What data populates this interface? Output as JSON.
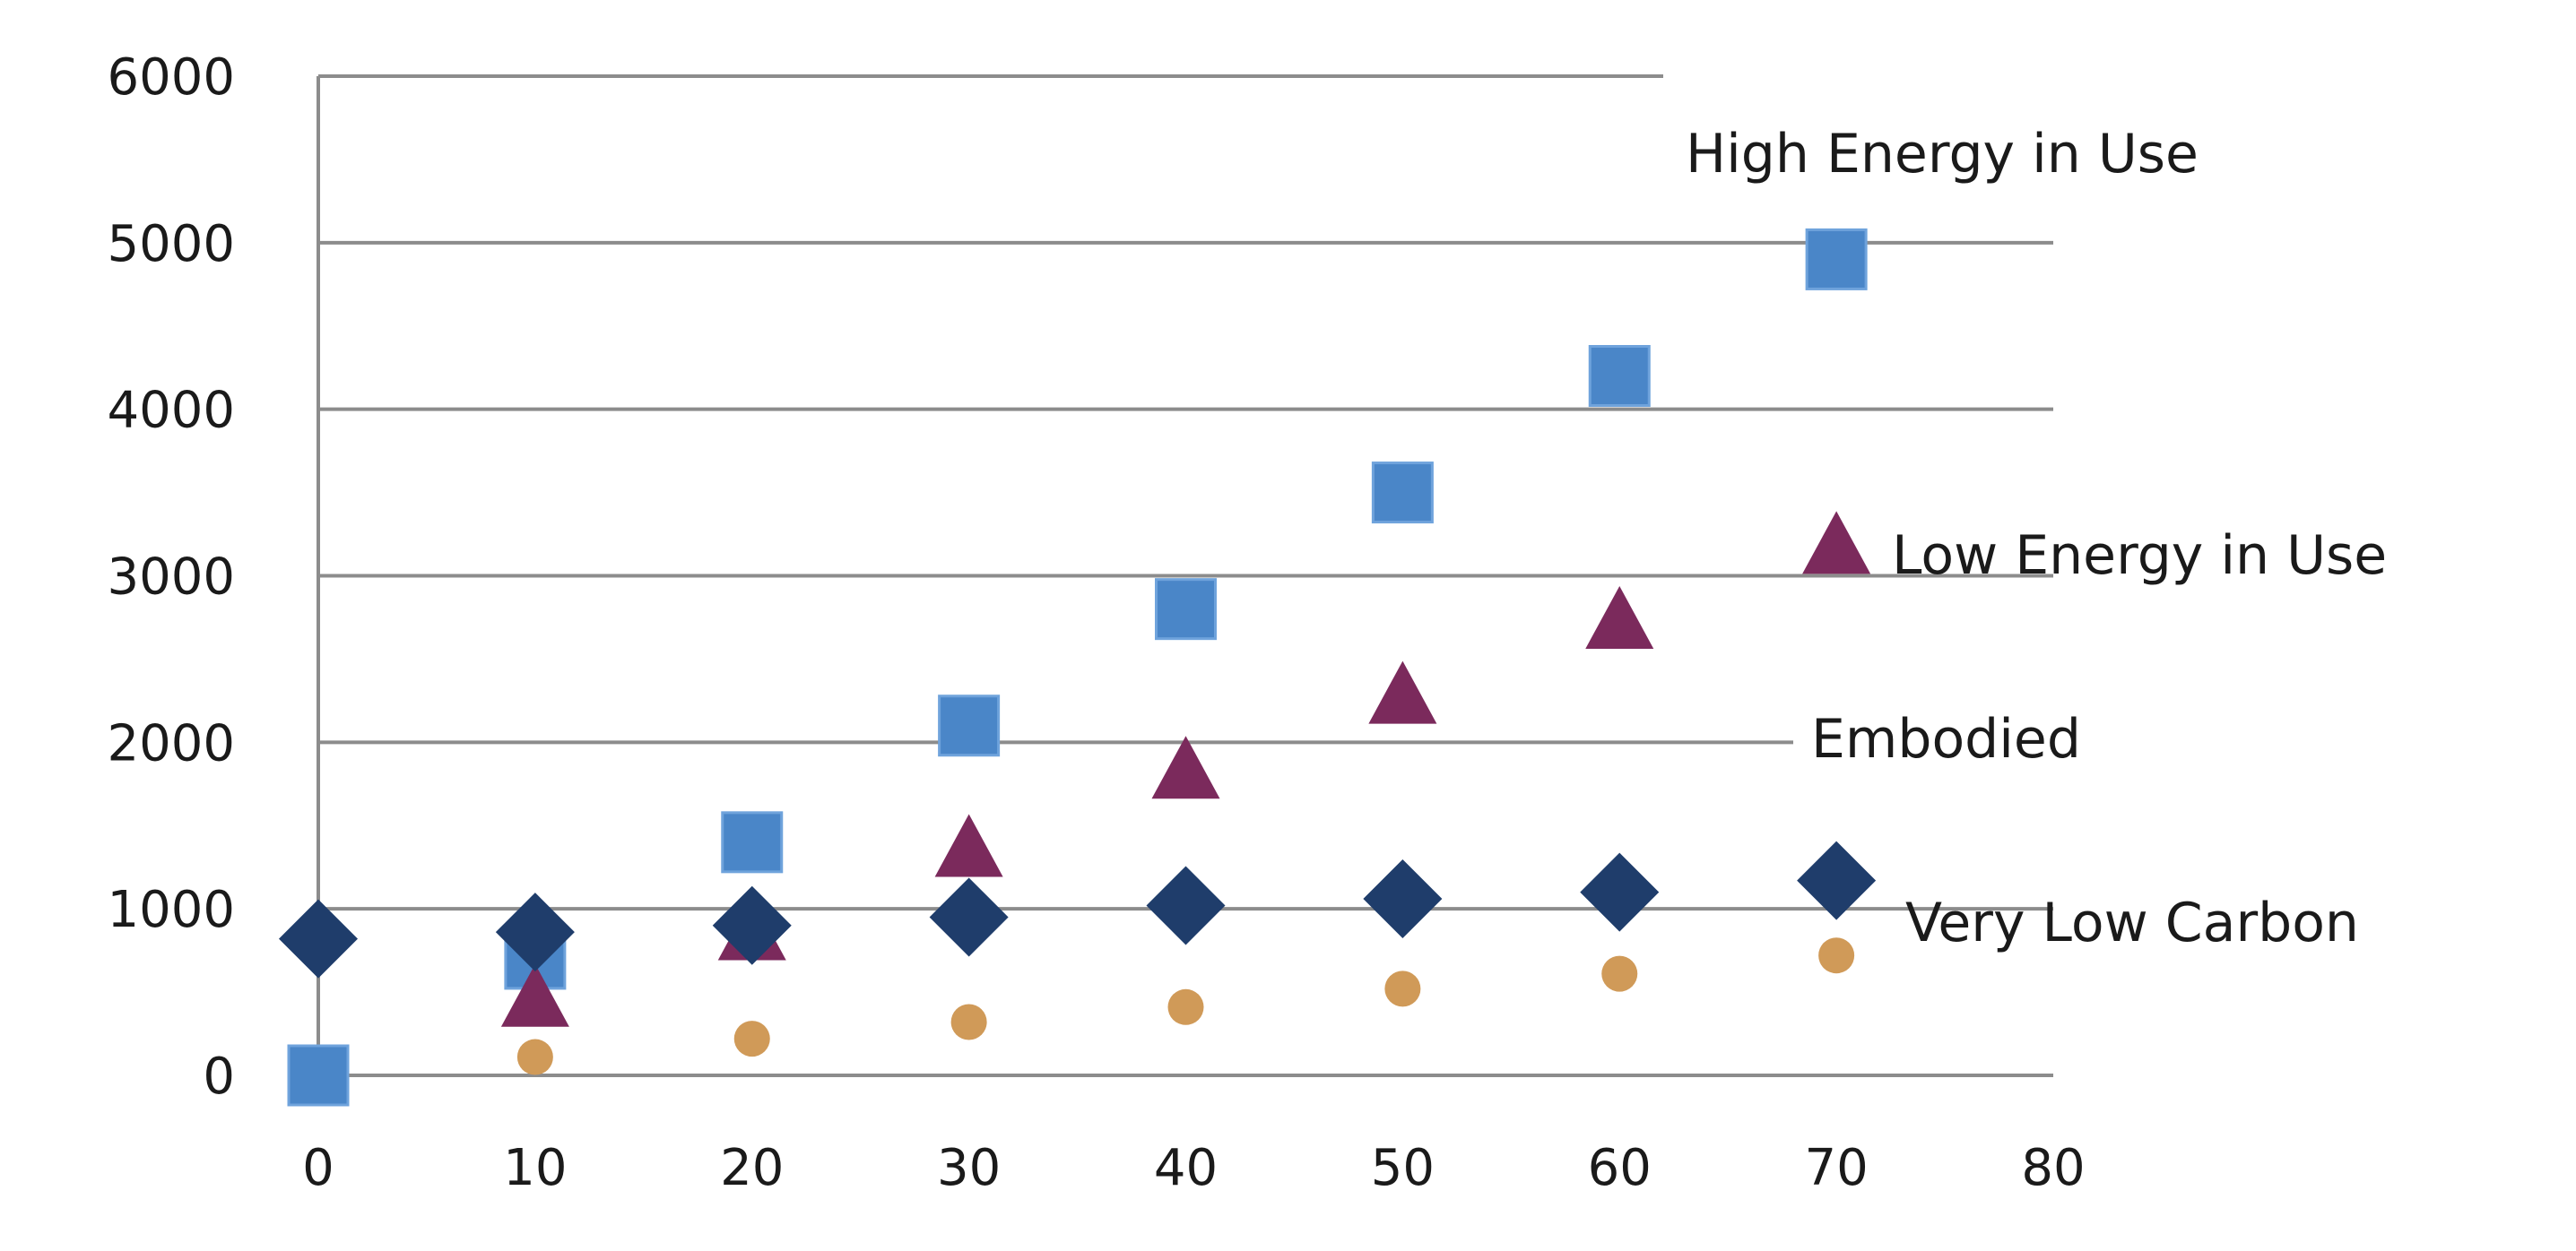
{
  "chart_data": {
    "type": "scatter",
    "title": "",
    "xlabel": "",
    "ylabel": "",
    "xlim": [
      0,
      80
    ],
    "ylim": [
      0,
      6000
    ],
    "x_ticks": [
      "0",
      "10",
      "20",
      "30",
      "40",
      "50",
      "60",
      "70",
      "80"
    ],
    "y_ticks": [
      "0",
      "1000",
      "2000",
      "3000",
      "4000",
      "5000",
      "6000"
    ],
    "grid": true,
    "legend": "inline labels at right",
    "series": [
      {
        "name": "High Energy in Use",
        "marker": "square",
        "color": "#4a86c8",
        "x": [
          0,
          10,
          20,
          30,
          40,
          50,
          60,
          70
        ],
        "y": [
          0,
          700,
          1400,
          2100,
          2800,
          3500,
          4200,
          4900
        ]
      },
      {
        "name": "Low Energy in Use",
        "marker": "triangle",
        "color": "#7b2a5c",
        "x": [
          10,
          20,
          30,
          40,
          50,
          60,
          70
        ],
        "y": [
          480,
          880,
          1380,
          1850,
          2300,
          2750,
          3200
        ]
      },
      {
        "name": "Embodied",
        "marker": "diamond",
        "color": "#1f3d6b",
        "x": [
          0,
          10,
          20,
          30,
          40,
          50,
          60,
          70
        ],
        "y": [
          820,
          860,
          900,
          950,
          1020,
          1060,
          1100,
          1170
        ]
      },
      {
        "name": "Very Low Carbon",
        "marker": "circle",
        "color": "#d09a58",
        "x": [
          10,
          20,
          30,
          40,
          50,
          60,
          70
        ],
        "y": [
          110,
          220,
          320,
          410,
          520,
          610,
          720
        ]
      }
    ],
    "labels": [
      {
        "text": "High Energy in Use",
        "series": "High Energy in Use"
      },
      {
        "text": "Low Energy in Use",
        "series": "Low Energy in Use"
      },
      {
        "text": "Embodied",
        "series": "Embodied"
      },
      {
        "text": "Very Low Carbon",
        "series": "Very Low Carbon"
      }
    ]
  }
}
